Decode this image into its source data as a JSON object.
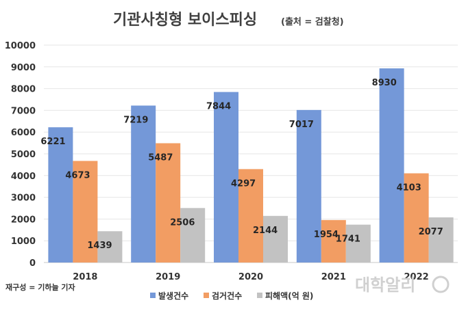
{
  "title": "기관사칭형 보이스피싱",
  "subtitle": "(출처 = 검찰청)",
  "credit": "재구성 = 기하늘 기자",
  "logo_text": "대학알리",
  "chart_data": {
    "type": "bar",
    "categories": [
      "2018",
      "2019",
      "2020",
      "2021",
      "2022"
    ],
    "series": [
      {
        "name": "발생건수",
        "color": "#7498d8",
        "values": [
          6221,
          7219,
          7844,
          7017,
          8930
        ]
      },
      {
        "name": "검거건수",
        "color": "#f29d63",
        "values": [
          4673,
          5487,
          4297,
          1954,
          4103
        ]
      },
      {
        "name": "피해액(억 원)",
        "color": "#c2c2c2",
        "values": [
          1439,
          2506,
          2144,
          1741,
          2077
        ]
      }
    ],
    "ylim": [
      0,
      10000
    ],
    "yticks": [
      0,
      1000,
      2000,
      3000,
      4000,
      5000,
      6000,
      7000,
      8000,
      9000,
      10000
    ],
    "grid": true,
    "legend": "bottom"
  }
}
